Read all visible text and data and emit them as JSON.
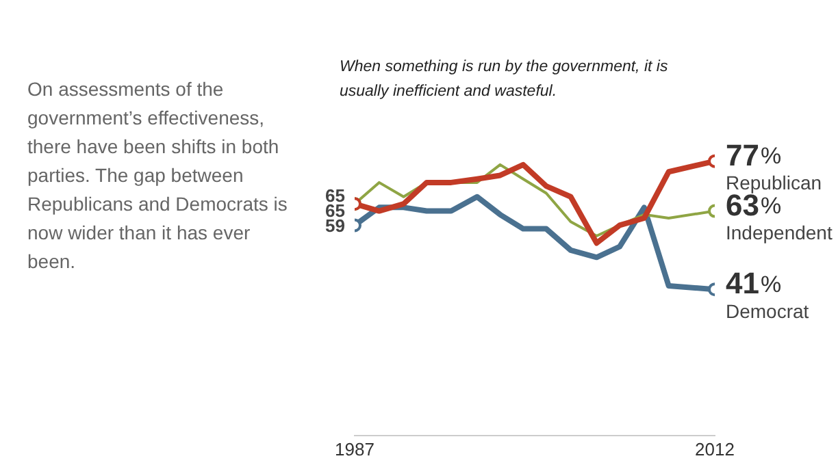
{
  "chart_data": {
    "type": "line",
    "title": "When something is run by the government, it is usually inefficient and wasteful.",
    "annotations": [
      "On assessments of the government’s effectiveness, there have been shifts in both parties. The gap between Republicans and Democrats is now wider than it has ever been."
    ],
    "x": [
      1987,
      1988.7,
      1990.4,
      1992,
      1993.7,
      1995.5,
      1997.1,
      1998.7,
      2000.3,
      2002,
      2003.8,
      2005.4,
      2007.1,
      2008.8,
      2012
    ],
    "xlim": [
      1987,
      2012
    ],
    "xticks": [
      1987,
      2012
    ],
    "tick_labels": "x",
    "grid": false,
    "legend": false,
    "marker": "none",
    "line_style": "solid",
    "series": [
      {
        "name": "Republican",
        "color": "#c23b26",
        "values": [
          65,
          63,
          65,
          71,
          71,
          72,
          73,
          76,
          70,
          67,
          54,
          59,
          61,
          74,
          77
        ],
        "value_labels": [
          "65",
          null,
          null,
          null,
          null,
          null,
          null,
          null,
          null,
          null,
          null,
          null,
          null,
          null,
          "77%"
        ]
      },
      {
        "name": "Independent",
        "color": "#8fa544",
        "values": [
          65,
          71,
          67,
          71,
          71,
          71,
          76,
          72,
          68,
          60,
          56,
          59,
          62,
          61,
          63
        ],
        "value_labels": [
          "65",
          null,
          null,
          null,
          null,
          null,
          null,
          null,
          null,
          null,
          null,
          null,
          null,
          null,
          "63%"
        ]
      },
      {
        "name": "Democrat",
        "color": "#4a7190",
        "values": [
          59,
          64,
          64,
          63,
          63,
          67,
          62,
          58,
          58,
          52,
          50,
          53,
          64,
          42,
          41
        ],
        "value_labels": [
          "59",
          null,
          null,
          null,
          null,
          null,
          null,
          null,
          null,
          null,
          null,
          null,
          null,
          null,
          "41%"
        ]
      }
    ]
  }
}
